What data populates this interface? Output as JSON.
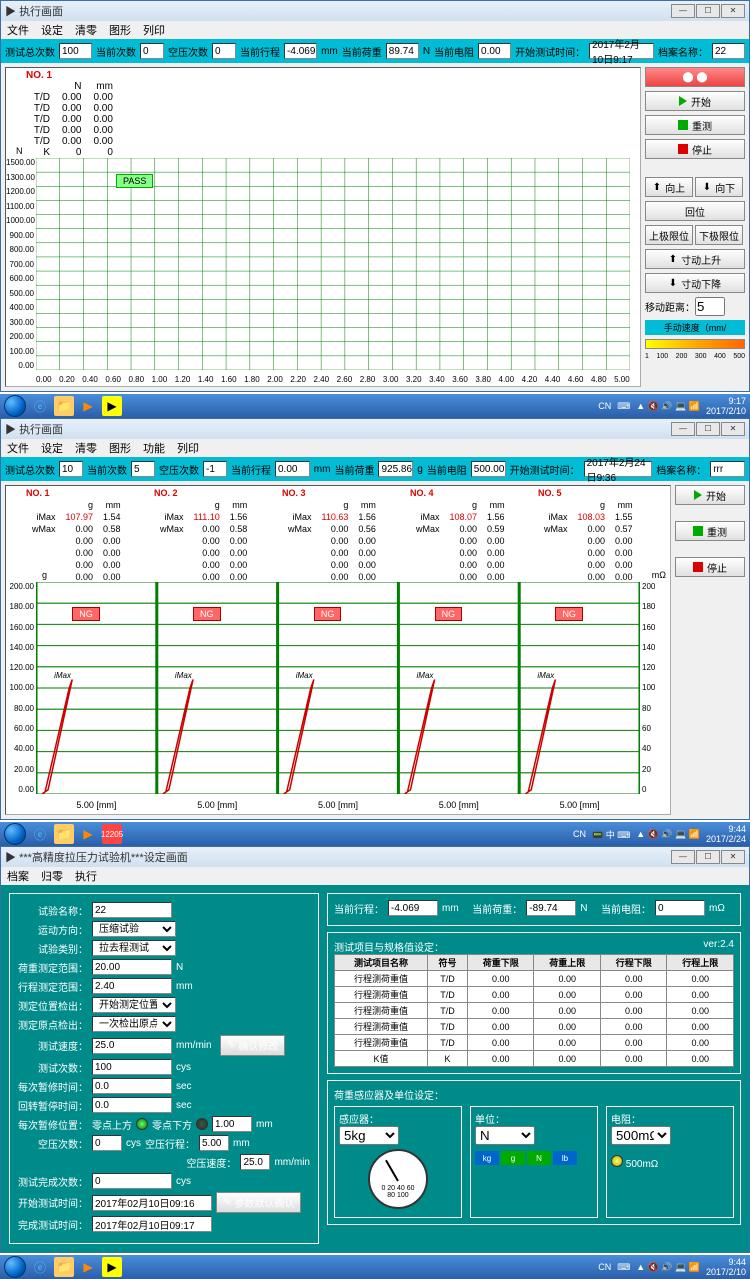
{
  "window1": {
    "title": "执行画面",
    "menus": [
      "文件",
      "设定",
      "清零",
      "图形",
      "列印"
    ],
    "status": {
      "total_label": "测试总次数",
      "total": "100",
      "current_label": "当前次数",
      "current": "0",
      "empty_label": "空压次数",
      "empty": "0",
      "stroke_label": "当前行程",
      "stroke": "-4.069",
      "stroke_unit": "mm",
      "load_label": "当前荷重",
      "load": "89.74",
      "load_unit": "N",
      "res_label": "当前电阻",
      "res": "0.00",
      "starttime_label": "开始测试时间：",
      "starttime": "2017年2月10日9:17",
      "file_label": "档案名称：",
      "file": "22"
    },
    "dtable": {
      "no": "NO.  1",
      "cols": [
        "",
        "N",
        "mm"
      ],
      "rows": [
        [
          "T/D",
          "0.00",
          "0.00"
        ],
        [
          "T/D",
          "0.00",
          "0.00"
        ],
        [
          "T/D",
          "0.00",
          "0.00"
        ],
        [
          "T/D",
          "0.00",
          "0.00"
        ],
        [
          "T/D",
          "0.00",
          "0.00"
        ],
        [
          "K",
          "0",
          "0"
        ]
      ]
    },
    "chart": {
      "y_unit": "N",
      "y_ticks": [
        "1500.00",
        "1300.00",
        "1200.00",
        "1100.00",
        "1000.00",
        "900.00",
        "800.00",
        "700.00",
        "600.00",
        "500.00",
        "400.00",
        "300.00",
        "200.00",
        "100.00",
        "0.00"
      ],
      "x_ticks": [
        "0.00",
        "0.20",
        "0.40",
        "0.60",
        "0.80",
        "1.00",
        "1.20",
        "1.40",
        "1.60",
        "1.80",
        "2.00",
        "2.20",
        "2.40",
        "2.60",
        "2.80",
        "3.00",
        "3.20",
        "3.40",
        "3.60",
        "3.80",
        "4.00",
        "4.20",
        "4.40",
        "4.60",
        "4.80",
        "5.00"
      ],
      "pass_label": "PASS",
      "grid_color": "#008000",
      "bg_color": "#ffffff"
    },
    "buttons": {
      "start": "开始",
      "retest": "重测",
      "stop": "停止",
      "up": "向上",
      "down": "向下",
      "home": "回位",
      "uplimit": "上极限位",
      "downlimit": "下极限位",
      "jogup": "寸动上升",
      "jogdown": "寸动下降",
      "move_dist_label": "移动距离：",
      "move_dist": "5",
      "speed_label": "手动速度（mm/",
      "speed_ticks": [
        "1",
        "100",
        "200",
        "300",
        "400",
        "500"
      ]
    }
  },
  "taskbar1": {
    "time": "9:17",
    "date": "2017/2/10",
    "lang": "CN"
  },
  "window2": {
    "title": "执行画面",
    "menus": [
      "文件",
      "设定",
      "清零",
      "图形",
      "功能",
      "列印"
    ],
    "status": {
      "total_label": "测试总次数",
      "total": "10",
      "current_label": "当前次数",
      "current": "5",
      "empty_label": "空压次数",
      "empty": "-1",
      "stroke_label": "当前行程",
      "stroke": "0.00",
      "stroke_unit": "mm",
      "load_label": "当前荷重",
      "load": "925.86",
      "load_unit": "g",
      "res_label": "当前电阻",
      "res": "500.00",
      "starttime_label": "开始测试时间：",
      "starttime": "2017年2月24日9:36",
      "file_label": "档案名称：",
      "file": "rrr"
    },
    "dtables": [
      {
        "no": "NO.  1",
        "imax_g": "107.97",
        "imax_mm": "1.54",
        "wmax_g": "0.00",
        "wmax_mm": "0.58"
      },
      {
        "no": "NO.  2",
        "imax_g": "111.10",
        "imax_mm": "1.56",
        "wmax_g": "0.00",
        "wmax_mm": "0.58"
      },
      {
        "no": "NO.  3",
        "imax_g": "110.63",
        "imax_mm": "1.56",
        "wmax_g": "0.00",
        "wmax_mm": "0.56"
      },
      {
        "no": "NO.  4",
        "imax_g": "108.07",
        "imax_mm": "1.56",
        "wmax_g": "0.00",
        "wmax_mm": "0.59"
      },
      {
        "no": "NO.  5",
        "imax_g": "108.03",
        "imax_mm": "1.55",
        "wmax_g": "0.00",
        "wmax_mm": "0.57"
      }
    ],
    "dt_cols": [
      "",
      "g",
      "mm"
    ],
    "dt_zero": "0.00",
    "dt_imax": "iMax",
    "dt_wmax": "wMax",
    "chart": {
      "y_ticks": [
        "200.00",
        "180.00",
        "160.00",
        "140.00",
        "120.00",
        "100.00",
        "80.00",
        "60.00",
        "40.00",
        "20.00",
        "0.00"
      ],
      "y2_ticks": [
        "200",
        "180",
        "160",
        "140",
        "120",
        "100",
        "80",
        "60",
        "40",
        "20",
        "0"
      ],
      "y_unit": "g",
      "y2_unit": "mΩ",
      "x_label": "5.00   [mm]",
      "ng_label": "NG",
      "imax_label": "iMax",
      "line_color": "#cc0000",
      "grid_color": "#008000"
    },
    "buttons": {
      "start": "开始",
      "retest": "重测",
      "stop": "停止"
    }
  },
  "taskbar2": {
    "time": "9:44",
    "date": "2017/2/24",
    "lang": "CN"
  },
  "window3": {
    "title": "***高精度拉压力试验机***设定画面",
    "menus": [
      "档案",
      "归零",
      "执行"
    ],
    "left": {
      "name_label": "试验名称：",
      "name": "22",
      "dir_label": "运动方向：",
      "dir": "压缩试验",
      "type_label": "试验类别：",
      "type": "拉去程测试",
      "range_label": "荷重测定范围：",
      "range": "20.00",
      "range_unit": "N",
      "strokerange_label": "行程测定范围：",
      "strokerange": "2.40",
      "strokerange_unit": "mm",
      "posdetect_label": "测定位置检出：",
      "posdetect": "开始测定位置",
      "origindetect_label": "测定原点检出：",
      "origindetect": "一次检出原点",
      "speed_label": "测试速度：",
      "speed": "25.0",
      "speed_unit": "mm/min",
      "count_label": "测试次数：",
      "count": "100",
      "count_unit": "cys",
      "pause_label": "每次暂修时间：",
      "pause": "0.0",
      "pause_unit": "sec",
      "rtpause_label": "回转暂停时间：",
      "rtpause": "0.0",
      "rtpause_unit": "sec",
      "everypause_label": "每次暂修位置：",
      "zeroup_label": "零点上方",
      "zerodown_label": "零点下方",
      "zerodist": "1.00",
      "zerodist_unit": "mm",
      "emptycount_label": "空压次数：",
      "emptycount": "0",
      "emptycount_unit": "cys",
      "emptystroke_label": "空压行程：",
      "emptystroke": "5.00",
      "emptystroke_unit": "mm",
      "emptyspeed_label": "空压速度：",
      "emptyspeed": "25.0",
      "emptyspeed_unit": "mm/min",
      "donecount_label": "测试完成次数：",
      "donecount": "0",
      "donecount_unit": "cys",
      "starttime_label": "开始测试时间：",
      "starttime": "2017年02月10日09:16",
      "endtime_label": "完成测试时间：",
      "endtime": "2017年02月10日09:17",
      "confirm_mod": "确认修改",
      "confirm_def": "参数默认确认"
    },
    "right_status": {
      "stroke_label": "当前行程：",
      "stroke": "-4.069",
      "stroke_unit": "mm",
      "load_label": "当前荷重：",
      "load": "-89.74",
      "load_unit": "N",
      "res_label": "当前电阻：",
      "res": "0",
      "res_unit": "mΩ"
    },
    "spec_table": {
      "title": "测试项目与规格值设定：",
      "ver": "ver:2.4",
      "headers": [
        "测试项目名称",
        "符号",
        "荷重下限",
        "荷重上限",
        "行程下限",
        "行程上限"
      ],
      "rows": [
        [
          "行程测荷重值",
          "T/D",
          "0.00",
          "0.00",
          "0.00",
          "0.00"
        ],
        [
          "行程测荷重值",
          "T/D",
          "0.00",
          "0.00",
          "0.00",
          "0.00"
        ],
        [
          "行程测荷重值",
          "T/D",
          "0.00",
          "0.00",
          "0.00",
          "0.00"
        ],
        [
          "行程测荷重值",
          "T/D",
          "0.00",
          "0.00",
          "0.00",
          "0.00"
        ],
        [
          "行程测荷重值",
          "T/D",
          "0.00",
          "0.00",
          "0.00",
          "0.00"
        ],
        [
          "K值",
          "K",
          "0.00",
          "0.00",
          "0.00",
          "0.00"
        ]
      ]
    },
    "sensor": {
      "title": "荷重感应器及单位设定：",
      "sensor_label": "感应器：",
      "sensor": "5kg",
      "unit_label": "单位：",
      "unit": "N",
      "unit_opts": [
        "kg",
        "g",
        "N",
        "lb"
      ],
      "res_label": "电阻：",
      "resval": "500mΩ",
      "res_opt": "500mΩ",
      "gauge_ticks": [
        "0",
        "20",
        "40",
        "60",
        "80",
        "100"
      ]
    }
  },
  "taskbar3": {
    "time": "9:44",
    "date": "2017/2/10",
    "lang": "CN"
  }
}
